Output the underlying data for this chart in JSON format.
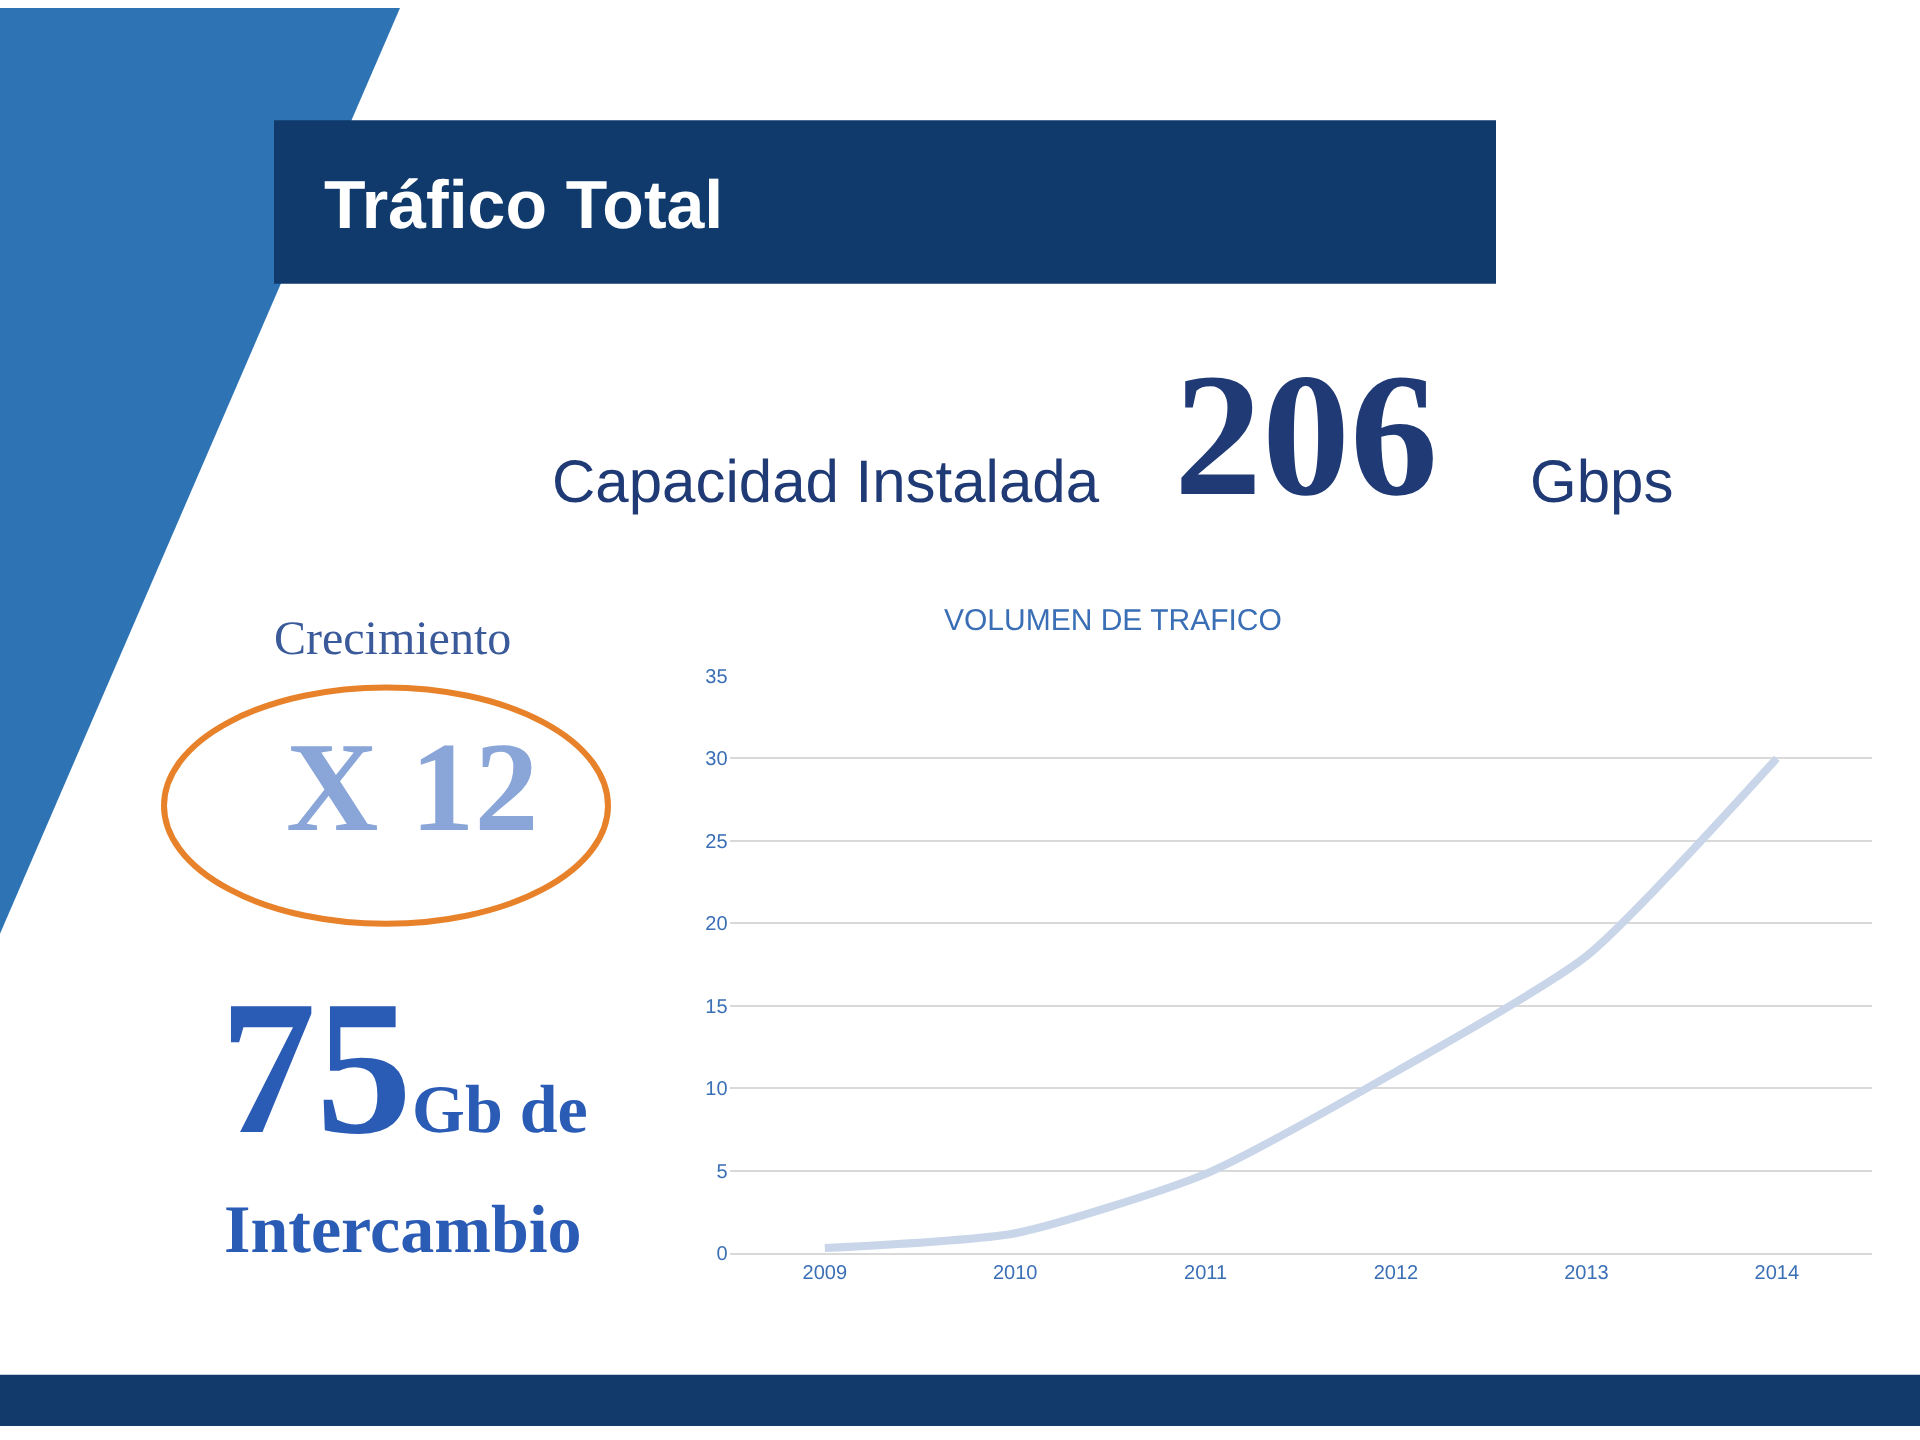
{
  "chart_data": {
    "type": "line",
    "title": "VOLUMEN DE TRAFICO",
    "categories": [
      "2009",
      "2010",
      "2011",
      "2012",
      "2013",
      "2014"
    ],
    "series": [
      {
        "color": "#c9d6ea",
        "values": [
          0.3,
          1.2,
          4.8,
          11,
          18,
          30
        ]
      }
    ],
    "ylim": [
      0,
      35
    ],
    "yticks": [
      0,
      5,
      10,
      15,
      20,
      25,
      30,
      35
    ],
    "grid": "y",
    "legend": false,
    "marker": "none",
    "line_style": "solid",
    "annotations": [
      "Tráfico Total",
      "Capacidad Instalada",
      "206",
      "Gbps",
      "Crecimiento",
      "X 12",
      "75",
      "Gb de",
      "Intercambio"
    ]
  }
}
